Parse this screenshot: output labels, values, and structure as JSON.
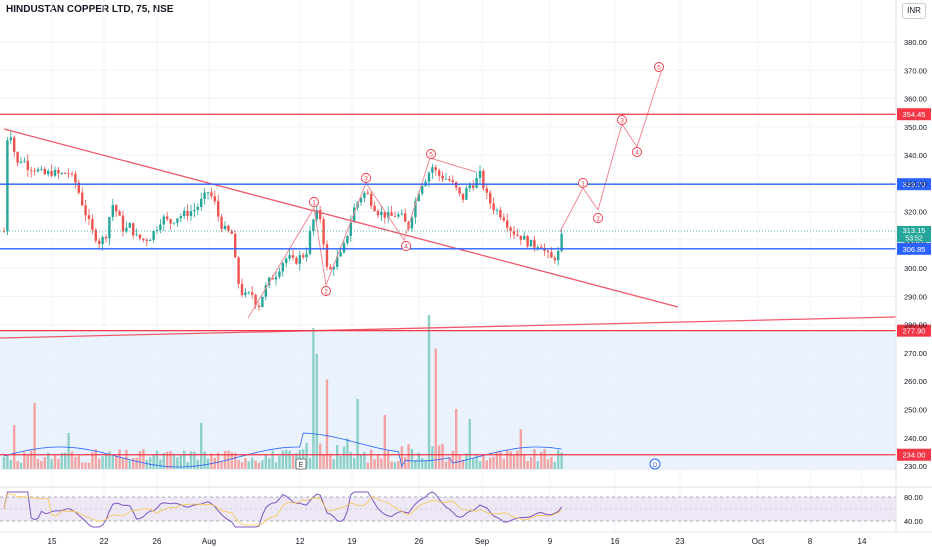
{
  "header": {
    "title": "HINDUSTAN COPPER LTD, 75, NSE",
    "currency": "INR"
  },
  "colors": {
    "up": "#26a69a",
    "down": "#ef5350",
    "resistance": "#f23645",
    "support": "#2962ff",
    "trendline": "#f05a6a",
    "wave": "#f08a96",
    "volume_bg": "#eaf3fd",
    "rsi": "#7e57c2"
  },
  "price_axis": {
    "ticks": [
      "380.00",
      "370.00",
      "360.00",
      "350.00",
      "340.00",
      "330.00",
      "320.00",
      "310.00",
      "300.00",
      "290.00",
      "280.00",
      "270.00",
      "260.00",
      "250.00",
      "240.00",
      "230.00"
    ]
  },
  "time_axis": {
    "labels": [
      "15",
      "22",
      "26",
      "Aug",
      "12",
      "19",
      "26",
      "Sep",
      "9",
      "16",
      "23",
      "Oct",
      "8",
      "14"
    ]
  },
  "levels": [
    {
      "label": "354.45",
      "price": 354.45,
      "kind": "resistance"
    },
    {
      "label": "329.70",
      "price": 329.7,
      "kind": "support"
    },
    {
      "label": "306.85",
      "price": 306.85,
      "kind": "support"
    },
    {
      "label": "277.90",
      "price": 277.9,
      "kind": "resistance"
    },
    {
      "label": "234.00",
      "price": 234.0,
      "kind": "resistance"
    }
  ],
  "last_price": {
    "price_label": "313.15",
    "countdown": "53:52",
    "price": 313.15
  },
  "markers": {
    "earnings": "E",
    "dividend": "D"
  },
  "wave_labels": [
    "1",
    "2",
    "3",
    "4",
    "5"
  ],
  "rsi_axis": {
    "ticks": [
      "80.00",
      "40.00"
    ]
  },
  "chart_data": {
    "type": "candlestick",
    "symbol": "HINDUSTAN COPPER LTD",
    "interval": "75",
    "exchange": "NSE",
    "ylim": [
      226,
      386
    ],
    "price_path": [
      [
        5,
        345
      ],
      [
        12,
        348
      ],
      [
        16,
        336
      ],
      [
        22,
        339
      ],
      [
        28,
        336
      ],
      [
        36,
        335
      ],
      [
        44,
        333
      ],
      [
        52,
        334
      ],
      [
        60,
        333
      ],
      [
        68,
        334
      ],
      [
        76,
        330
      ],
      [
        84,
        321
      ],
      [
        92,
        313
      ],
      [
        100,
        309
      ],
      [
        106,
        312
      ],
      [
        112,
        323
      ],
      [
        118,
        319
      ],
      [
        124,
        313
      ],
      [
        130,
        315
      ],
      [
        136,
        311
      ],
      [
        144,
        310
      ],
      [
        150,
        311
      ],
      [
        156,
        314
      ],
      [
        162,
        318
      ],
      [
        170,
        316
      ],
      [
        176,
        318
      ],
      [
        184,
        319
      ],
      [
        190,
        320
      ],
      [
        196,
        321
      ],
      [
        202,
        324
      ],
      [
        208,
        327
      ],
      [
        214,
        324
      ],
      [
        220,
        316
      ],
      [
        226,
        313
      ],
      [
        232,
        312
      ],
      [
        236,
        300
      ],
      [
        240,
        292
      ],
      [
        246,
        290
      ],
      [
        252,
        291
      ],
      [
        258,
        286
      ],
      [
        264,
        292
      ],
      [
        270,
        296
      ],
      [
        276,
        298
      ],
      [
        282,
        302
      ],
      [
        288,
        304
      ],
      [
        294,
        302
      ],
      [
        300,
        304
      ],
      [
        306,
        305
      ],
      [
        312,
        316
      ],
      [
        318,
        320
      ],
      [
        322,
        316
      ],
      [
        326,
        300
      ],
      [
        330,
        299
      ],
      [
        336,
        303
      ],
      [
        342,
        305
      ],
      [
        348,
        313
      ],
      [
        354,
        321
      ],
      [
        360,
        325
      ],
      [
        366,
        327
      ],
      [
        372,
        323
      ],
      [
        378,
        320
      ],
      [
        384,
        319
      ],
      [
        390,
        318
      ],
      [
        396,
        319
      ],
      [
        402,
        318
      ],
      [
        408,
        314
      ],
      [
        414,
        322
      ],
      [
        420,
        329
      ],
      [
        426,
        332
      ],
      [
        432,
        336
      ],
      [
        438,
        333
      ],
      [
        444,
        332
      ],
      [
        450,
        331
      ],
      [
        456,
        328
      ],
      [
        462,
        324
      ],
      [
        468,
        329
      ],
      [
        474,
        330
      ],
      [
        480,
        333
      ],
      [
        486,
        326
      ],
      [
        492,
        322
      ],
      [
        498,
        320
      ],
      [
        504,
        318
      ],
      [
        510,
        314
      ],
      [
        516,
        312
      ],
      [
        522,
        311
      ],
      [
        528,
        309
      ],
      [
        534,
        308
      ],
      [
        540,
        309
      ],
      [
        546,
        305
      ],
      [
        552,
        303
      ],
      [
        558,
        305
      ],
      [
        563,
        313
      ]
    ],
    "volume": {
      "period": "daily",
      "shown_by": "bars"
    },
    "rsi": {
      "ticks": [
        80,
        40
      ]
    },
    "resistance_levels": [
      354.45,
      277.9,
      234.0
    ],
    "support_levels": [
      329.7,
      306.85
    ],
    "last": 313.15
  }
}
